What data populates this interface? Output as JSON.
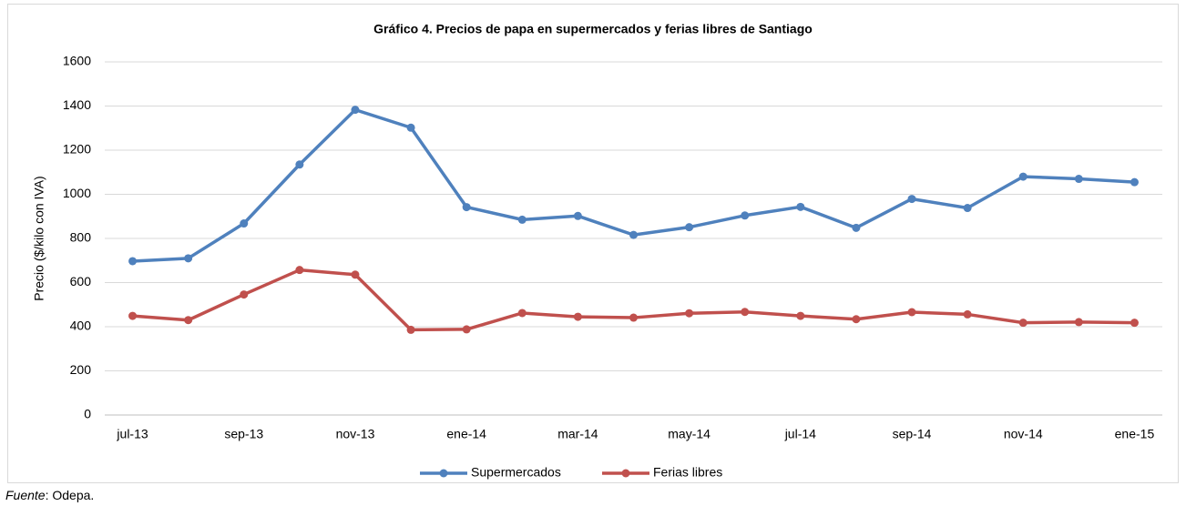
{
  "chart_data": {
    "type": "line",
    "title": "Gráfico 4. Precios de papa en supermercados y ferias libres de Santiago",
    "y_label": "Precio ($/kilo con IVA)",
    "categories": [
      "jul-13",
      null,
      "sep-13",
      null,
      "nov-13",
      null,
      "ene-14",
      null,
      "mar-14",
      null,
      "may-14",
      null,
      "jul-14",
      null,
      "sep-14",
      null,
      "nov-14",
      null,
      "ene-15"
    ],
    "series": [
      {
        "name": "Supermercados",
        "color": "#4f81bd",
        "values": [
          697,
          710,
          868,
          1135,
          1383,
          1302,
          942,
          885,
          902,
          816,
          851,
          904,
          943,
          848,
          979,
          938,
          1080,
          1070,
          1055
        ]
      },
      {
        "name": "Ferias libres",
        "color": "#c0504d",
        "values": [
          449,
          430,
          546,
          657,
          636,
          386,
          388,
          462,
          445,
          441,
          461,
          467,
          449,
          434,
          466,
          456,
          418,
          421,
          418
        ]
      }
    ],
    "ylim": [
      0,
      1600
    ],
    "yticks": [
      0,
      200,
      400,
      600,
      800,
      1000,
      1200,
      1400,
      1600
    ],
    "grid": true,
    "legend": "bottom",
    "source": {
      "label": "Fuente",
      "text": ": Odepa."
    }
  }
}
